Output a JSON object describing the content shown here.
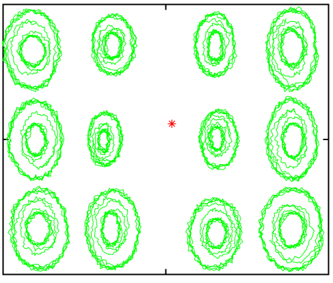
{
  "chart_data": {
    "type": "line",
    "title": "",
    "xlabel": "",
    "ylabel": "",
    "xlim": [
      -4,
      4
    ],
    "ylim": [
      -3,
      3
    ],
    "grid": false,
    "legend": false,
    "trajectory_color": "#00ff00",
    "marker_color": "#ff0000",
    "marker": {
      "shape": "asterisk",
      "x": 0.15,
      "y": 0.35
    },
    "series": [
      {
        "cx": -3.3,
        "cy": 2.0,
        "rx_outer": 0.66,
        "ry_outer": 0.86,
        "rx_inner": 0.3,
        "ry_inner": 0.32
      },
      {
        "cx": -1.3,
        "cy": 2.1,
        "rx_outer": 0.5,
        "ry_outer": 0.64,
        "rx_inner": 0.2,
        "ry_inner": 0.3
      },
      {
        "cx": 1.2,
        "cy": 2.1,
        "rx_outer": 0.48,
        "ry_outer": 0.66,
        "rx_inner": 0.18,
        "ry_inner": 0.32
      },
      {
        "cx": 3.1,
        "cy": 2.0,
        "rx_outer": 0.6,
        "ry_outer": 0.88,
        "rx_inner": 0.26,
        "ry_inner": 0.4
      },
      {
        "cx": -3.2,
        "cy": 0.0,
        "rx_outer": 0.64,
        "ry_outer": 0.86,
        "rx_inner": 0.22,
        "ry_inner": 0.34
      },
      {
        "cx": -1.5,
        "cy": 0.0,
        "rx_outer": 0.4,
        "ry_outer": 0.58,
        "rx_inner": 0.12,
        "ry_inner": 0.24
      },
      {
        "cx": 1.3,
        "cy": 0.0,
        "rx_outer": 0.44,
        "ry_outer": 0.62,
        "rx_inner": 0.16,
        "ry_inner": 0.26
      },
      {
        "cx": 3.1,
        "cy": 0.0,
        "rx_outer": 0.6,
        "ry_outer": 0.86,
        "rx_inner": 0.24,
        "ry_inner": 0.38
      },
      {
        "cx": -3.1,
        "cy": -2.0,
        "rx_outer": 0.7,
        "ry_outer": 0.88,
        "rx_inner": 0.28,
        "ry_inner": 0.34
      },
      {
        "cx": -1.3,
        "cy": -2.0,
        "rx_outer": 0.64,
        "ry_outer": 0.86,
        "rx_inner": 0.22,
        "ry_inner": 0.36
      },
      {
        "cx": 1.2,
        "cy": -2.1,
        "rx_outer": 0.62,
        "ry_outer": 0.76,
        "rx_inner": 0.24,
        "ry_inner": 0.32
      },
      {
        "cx": 3.1,
        "cy": -2.0,
        "rx_outer": 0.74,
        "ry_outer": 0.9,
        "rx_inner": 0.3,
        "ry_inner": 0.38
      }
    ]
  }
}
